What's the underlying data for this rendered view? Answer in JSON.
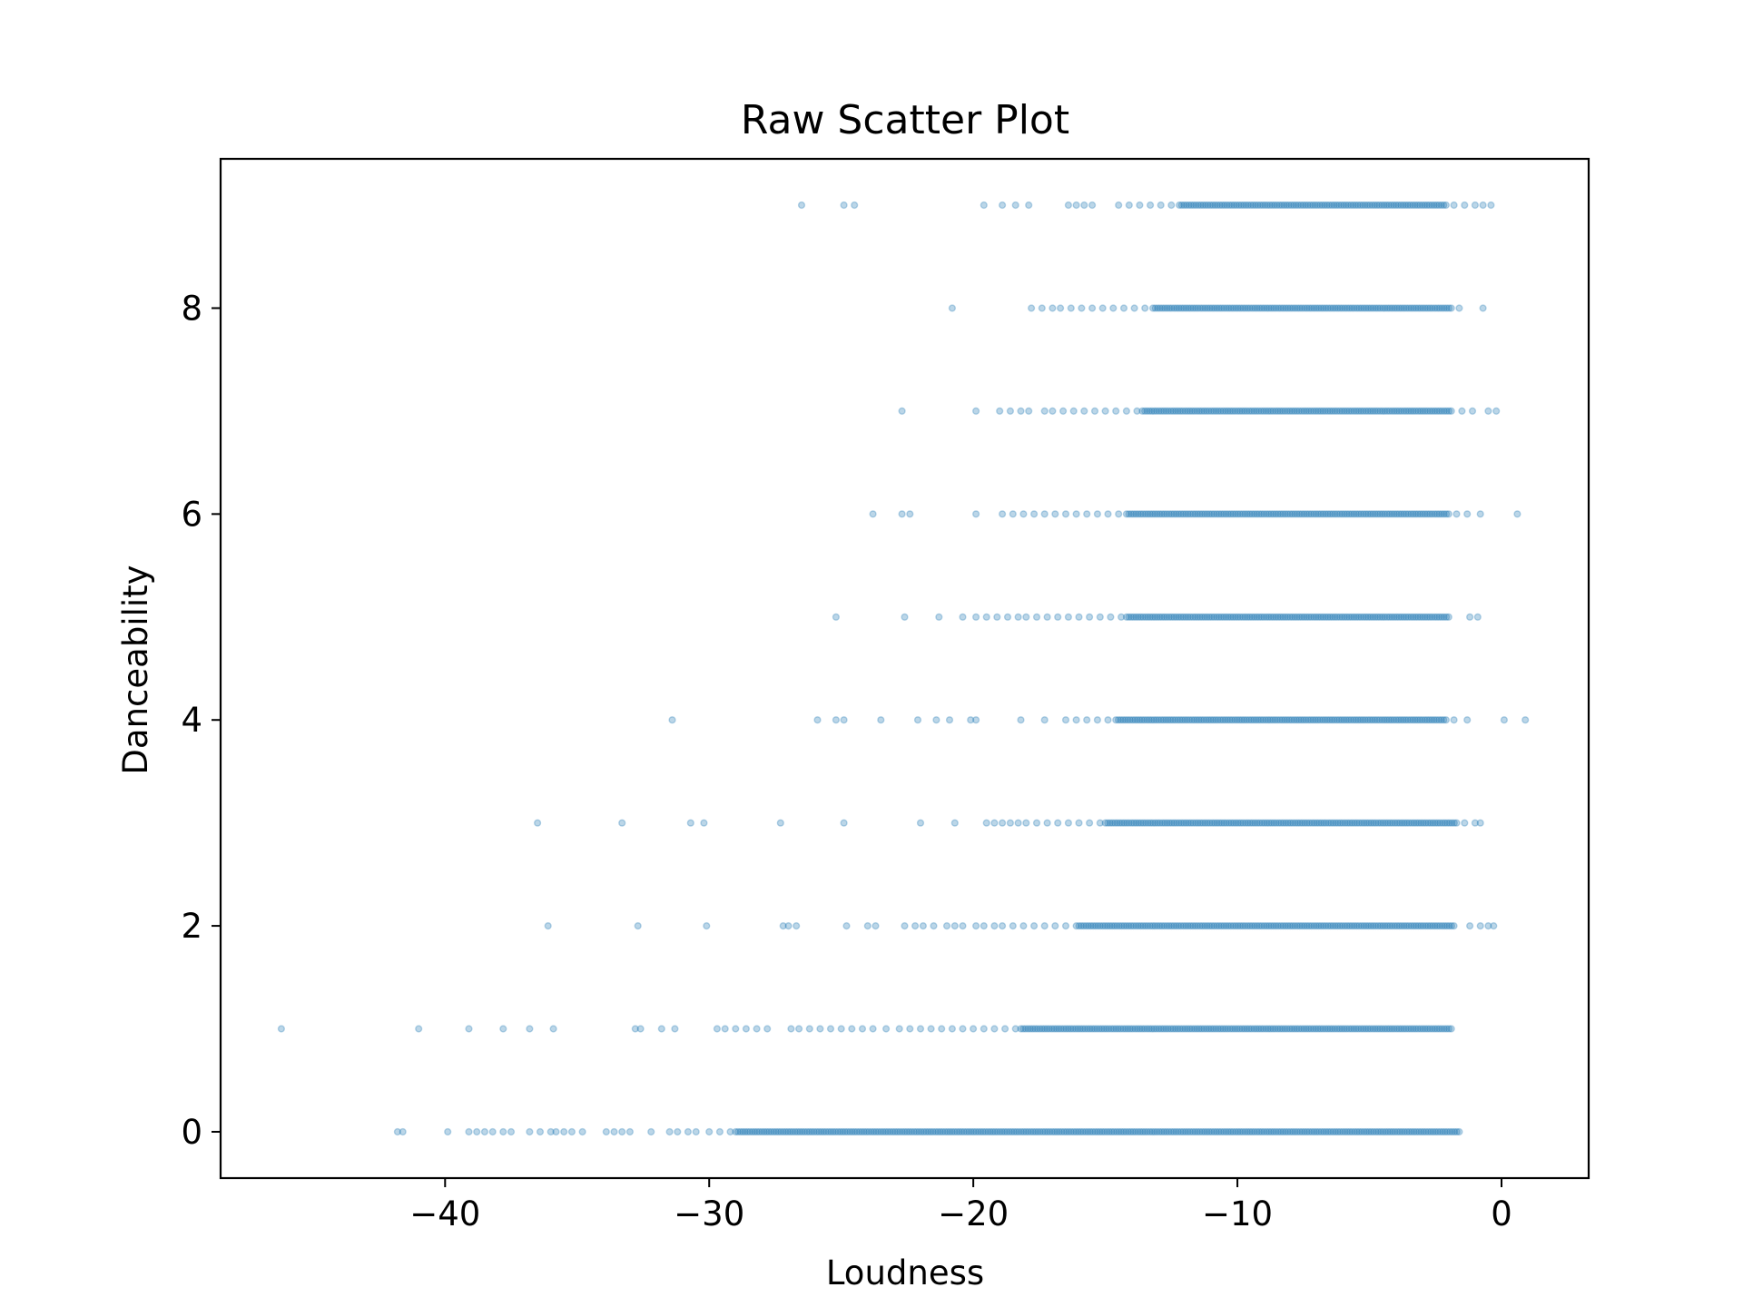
{
  "chart_data": {
    "type": "scatter",
    "title": "Raw Scatter Plot",
    "xlabel": "Loudness",
    "ylabel": "Danceability",
    "xlim": [
      -48.5,
      3.3
    ],
    "ylim": [
      -0.45,
      9.45
    ],
    "x_ticks": [
      -40,
      -30,
      -20,
      -10,
      0
    ],
    "x_tick_labels": [
      "−40",
      "−30",
      "−20",
      "−10",
      "0"
    ],
    "y_ticks": [
      0,
      2,
      4,
      6,
      8
    ],
    "y_tick_labels": [
      "0",
      "2",
      "4",
      "6",
      "8"
    ],
    "grid": false,
    "legend": "none",
    "marker_color": "#1f77b4",
    "marker_alpha": 0.3,
    "series": [
      {
        "values": [
          {
            "y": 0,
            "x": [
              -41.8,
              -41.6,
              -39.9,
              -39.1,
              -38.8,
              -38.5,
              -38.2,
              -37.8,
              -37.5,
              -36.8,
              -36.4,
              -36.0,
              -35.8,
              -35.5,
              -35.2,
              -34.8,
              -33.9,
              -33.6,
              -33.3,
              -33.0,
              -32.2,
              -31.5,
              -31.2,
              -30.8,
              -30.5,
              -30.0,
              -29.6,
              -29.2
            ]
          },
          {
            "y": 1,
            "x": [
              -46.2,
              -41.0,
              -39.1,
              -37.8,
              -36.8,
              -35.9,
              -32.8,
              -32.6,
              -31.8,
              -31.3,
              -29.7,
              -29.4,
              -29.0,
              -28.6,
              -28.2,
              -27.8,
              -26.9,
              -26.6,
              -26.2,
              -25.8,
              -25.4,
              -25.0,
              -24.6,
              -24.2,
              -23.8,
              -23.3,
              -22.8,
              -22.4,
              -22.0,
              -21.6,
              -21.2,
              -20.8,
              -20.4,
              -20.0,
              -19.6,
              -19.2,
              -18.8,
              -18.4
            ]
          },
          {
            "y": 2,
            "x": [
              -36.1,
              -32.7,
              -30.1,
              -27.2,
              -27.0,
              -26.7,
              -24.8,
              -24.0,
              -23.7,
              -22.6,
              -22.2,
              -21.9,
              -21.5,
              -21.0,
              -20.7,
              -20.4,
              -19.9,
              -19.6,
              -19.2,
              -18.9,
              -18.5,
              -18.1,
              -17.7,
              -17.3,
              -16.9,
              -16.5,
              -16.1,
              -1.2,
              -0.8,
              -0.5,
              -0.3
            ]
          },
          {
            "y": 3,
            "x": [
              -36.5,
              -33.3,
              -30.7,
              -30.2,
              -27.3,
              -24.9,
              -22.0,
              -20.7,
              -19.5,
              -19.2,
              -18.9,
              -18.6,
              -18.3,
              -18.0,
              -17.6,
              -17.2,
              -16.8,
              -16.4,
              -16.0,
              -15.6,
              -15.2,
              -1.4,
              -1.0,
              -0.8
            ]
          },
          {
            "y": 4,
            "x": [
              -31.4,
              -25.9,
              -25.2,
              -24.9,
              -23.5,
              -22.1,
              -21.4,
              -20.9,
              -20.1,
              -19.9,
              -18.2,
              -17.3,
              -16.5,
              -16.1,
              -15.7,
              -15.3,
              -14.9,
              -1.8,
              -1.3,
              0.1,
              0.9
            ]
          },
          {
            "y": 5,
            "x": [
              -25.2,
              -22.6,
              -21.3,
              -20.4,
              -19.9,
              -19.5,
              -19.1,
              -18.7,
              -18.3,
              -18.0,
              -17.6,
              -17.2,
              -16.8,
              -16.4,
              -16.0,
              -15.6,
              -15.2,
              -14.8,
              -14.4,
              -1.2,
              -0.9
            ]
          },
          {
            "y": 6,
            "x": [
              -23.8,
              -22.7,
              -22.4,
              -19.9,
              -18.9,
              -18.5,
              -18.1,
              -17.7,
              -17.3,
              -16.9,
              -16.5,
              -16.1,
              -15.7,
              -15.3,
              -14.9,
              -14.5,
              -1.7,
              -1.3,
              -0.8,
              0.6
            ]
          },
          {
            "y": 7,
            "x": [
              -22.7,
              -19.9,
              -19.0,
              -18.6,
              -18.2,
              -17.9,
              -17.3,
              -17.0,
              -16.6,
              -16.2,
              -15.8,
              -15.4,
              -15.0,
              -14.6,
              -14.2,
              -13.8,
              -1.5,
              -1.1,
              -0.5,
              -0.2
            ]
          },
          {
            "y": 8,
            "x": [
              -20.8,
              -17.8,
              -17.4,
              -17.0,
              -16.7,
              -16.3,
              -15.9,
              -15.5,
              -15.1,
              -14.7,
              -14.3,
              -13.9,
              -13.5,
              -1.6,
              -0.7
            ]
          },
          {
            "y": 9,
            "x": [
              -26.5,
              -24.9,
              -24.5,
              -19.6,
              -18.9,
              -18.4,
              -17.9,
              -16.4,
              -16.1,
              -15.8,
              -15.5,
              -14.5,
              -14.1,
              -13.7,
              -13.3,
              -12.9,
              -12.5,
              -1.8,
              -1.4,
              -1.0,
              -0.7,
              -0.4
            ]
          }
        ]
      }
    ],
    "dense_segments": [
      {
        "y": 0,
        "x_start": -29.0,
        "x_end": -1.6
      },
      {
        "y": 1,
        "x_start": -18.2,
        "x_end": -1.9
      },
      {
        "y": 2,
        "x_start": -16.0,
        "x_end": -1.8
      },
      {
        "y": 3,
        "x_start": -15.0,
        "x_end": -1.7
      },
      {
        "y": 4,
        "x_start": -14.6,
        "x_end": -2.1
      },
      {
        "y": 5,
        "x_start": -14.2,
        "x_end": -2.0
      },
      {
        "y": 6,
        "x_start": -14.2,
        "x_end": -2.0
      },
      {
        "y": 7,
        "x_start": -13.6,
        "x_end": -1.9
      },
      {
        "y": 8,
        "x_start": -13.2,
        "x_end": -1.9
      },
      {
        "y": 9,
        "x_start": -12.2,
        "x_end": -2.1
      }
    ]
  }
}
